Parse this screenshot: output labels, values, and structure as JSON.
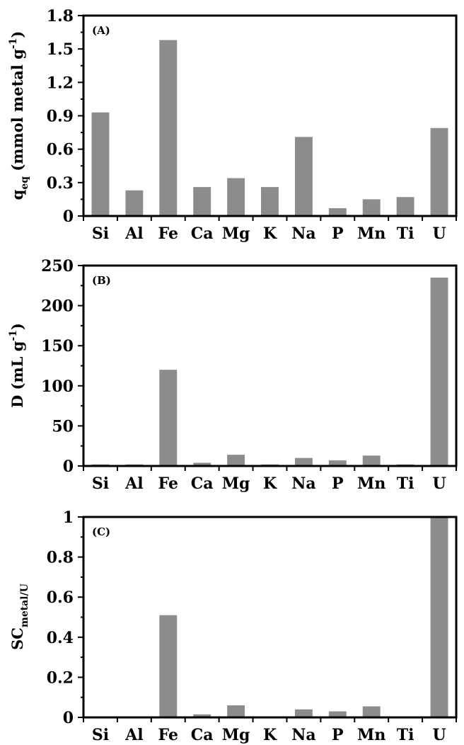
{
  "chart_data": [
    {
      "type": "bar",
      "panel_label": "(A)",
      "ylabel": {
        "main": "q",
        "sub": "eq",
        "rest": " (mmol metal g",
        "sup": "-1",
        "end": ")"
      },
      "categories": [
        "Si",
        "Al",
        "Fe",
        "Ca",
        "Mg",
        "K",
        "Na",
        "P",
        "Mn",
        "Ti",
        "U"
      ],
      "values": [
        0.93,
        0.23,
        1.58,
        0.26,
        0.34,
        0.26,
        0.71,
        0.07,
        0.15,
        0.17,
        0.79
      ],
      "ylim": [
        0,
        1.8
      ],
      "yticks": [
        0,
        0.3,
        0.6,
        0.9,
        1.2,
        1.5,
        1.8
      ],
      "ytick_labels": [
        "0",
        "0.3",
        "0.6",
        "0.9",
        "1.2",
        "1.5",
        "1.8"
      ],
      "bar_color": "#8c8c8c"
    },
    {
      "type": "bar",
      "panel_label": "(B)",
      "ylabel": {
        "main": "D (mL g",
        "sup": "-1",
        "end": ")"
      },
      "categories": [
        "Si",
        "Al",
        "Fe",
        "Ca",
        "Mg",
        "K",
        "Na",
        "P",
        "Mn",
        "Ti",
        "U"
      ],
      "values": [
        2,
        2,
        120,
        4,
        14,
        2,
        10,
        7,
        13,
        2,
        235
      ],
      "ylim": [
        0,
        250
      ],
      "yticks": [
        0,
        50,
        100,
        150,
        200,
        250
      ],
      "ytick_labels": [
        "0",
        "50",
        "100",
        "150",
        "200",
        "250"
      ],
      "bar_color": "#8c8c8c"
    },
    {
      "type": "bar",
      "panel_label": "(C)",
      "ylabel": {
        "main": "SC",
        "sub": "metal/U"
      },
      "categories": [
        "Si",
        "Al",
        "Fe",
        "Ca",
        "Mg",
        "K",
        "Na",
        "P",
        "Mn",
        "Ti",
        "U"
      ],
      "values": [
        0.0,
        0.0,
        0.51,
        0.015,
        0.06,
        0.0,
        0.04,
        0.03,
        0.055,
        0.0,
        1.0
      ],
      "ylim": [
        0,
        1
      ],
      "yticks": [
        0,
        0.2,
        0.4,
        0.6,
        0.8,
        1
      ],
      "ytick_labels": [
        "0",
        "0.2",
        "0.4",
        "0.6",
        "0.8",
        "1"
      ],
      "bar_color": "#8c8c8c"
    }
  ]
}
